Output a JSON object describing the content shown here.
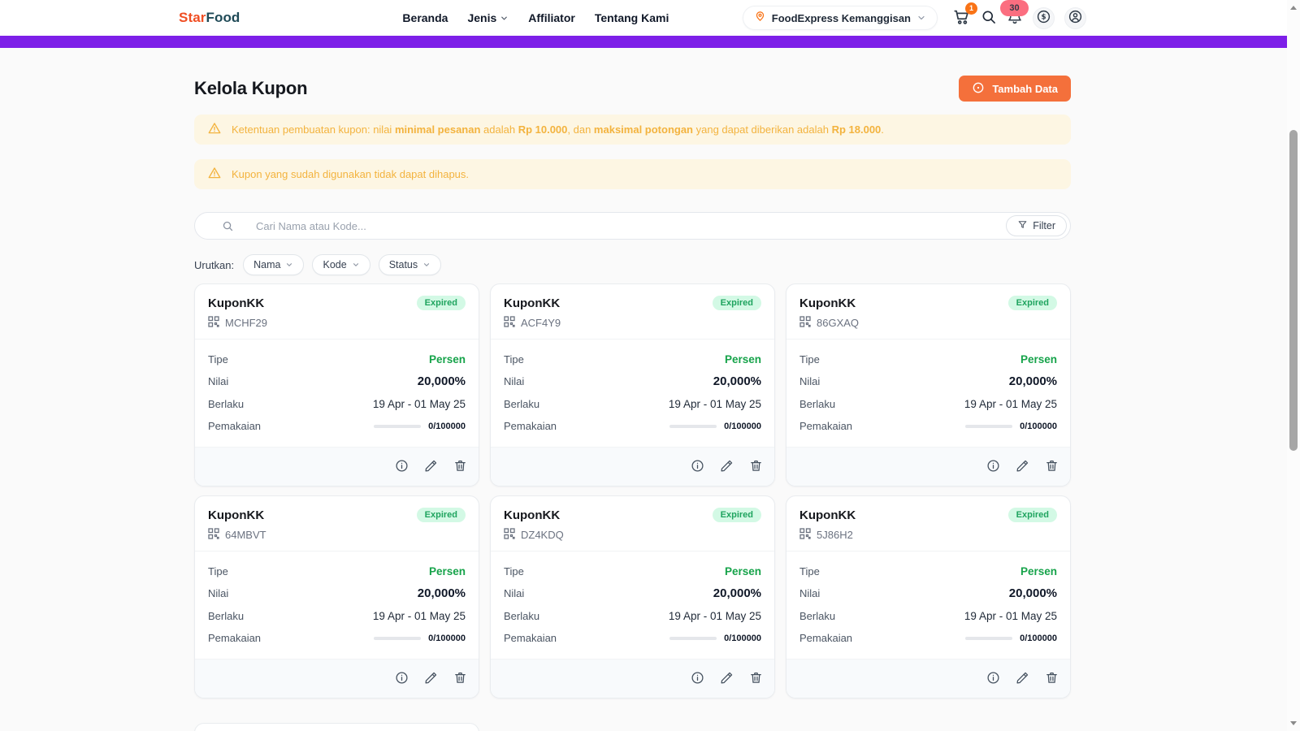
{
  "brand": {
    "name_part1": "Star",
    "name_part2": "Food"
  },
  "nav": {
    "items": [
      "Beranda",
      "Jenis",
      "Affiliator",
      "Tentang Kami"
    ],
    "location_label": "FoodExpress Kemanggisan",
    "cart_badge": "1",
    "notif_badge": "30"
  },
  "page": {
    "title": "Kelola Kupon",
    "add_button_label": "Tambah Data"
  },
  "notices": [
    {
      "segments": [
        {
          "text": "Ketentuan pembuatan kupon: nilai ",
          "bold": false
        },
        {
          "text": "minimal pesanan",
          "bold": true
        },
        {
          "text": " adalah ",
          "bold": false
        },
        {
          "text": "Rp 10.000",
          "bold": true
        },
        {
          "text": ", dan ",
          "bold": false
        },
        {
          "text": "maksimal potongan",
          "bold": true
        },
        {
          "text": " yang dapat diberikan adalah ",
          "bold": false
        },
        {
          "text": "Rp 18.000",
          "bold": true
        },
        {
          "text": ".",
          "bold": false
        }
      ]
    },
    {
      "segments": [
        {
          "text": "Kupon yang sudah digunakan tidak dapat dihapus.",
          "bold": false
        }
      ]
    }
  ],
  "search": {
    "placeholder": "Cari Nama atau Kode...",
    "filter_label": "Filter"
  },
  "sort": {
    "label": "Urutkan:",
    "options": [
      "Nama",
      "Kode",
      "Status"
    ]
  },
  "card_labels": {
    "type": "Tipe",
    "value": "Nilai",
    "valid": "Berlaku",
    "usage": "Pemakaian"
  },
  "coupons": [
    {
      "name": "KuponKK",
      "code": "MCHF29",
      "status": "Expired",
      "type": "Persen",
      "value": "20,000%",
      "valid": "19 Apr - 01 May 25",
      "usage": "0/100000"
    },
    {
      "name": "KuponKK",
      "code": "ACF4Y9",
      "status": "Expired",
      "type": "Persen",
      "value": "20,000%",
      "valid": "19 Apr - 01 May 25",
      "usage": "0/100000"
    },
    {
      "name": "KuponKK",
      "code": "86GXAQ",
      "status": "Expired",
      "type": "Persen",
      "value": "20,000%",
      "valid": "19 Apr - 01 May 25",
      "usage": "0/100000"
    },
    {
      "name": "KuponKK",
      "code": "64MBVT",
      "status": "Expired",
      "type": "Persen",
      "value": "20,000%",
      "valid": "19 Apr - 01 May 25",
      "usage": "0/100000"
    },
    {
      "name": "KuponKK",
      "code": "DZ4KDQ",
      "status": "Expired",
      "type": "Persen",
      "value": "20,000%",
      "valid": "19 Apr - 01 May 25",
      "usage": "0/100000"
    },
    {
      "name": "KuponKK",
      "code": "5J86H2",
      "status": "Expired",
      "type": "Persen",
      "value": "20,000%",
      "valid": "19 Apr - 01 May 25",
      "usage": "0/100000"
    }
  ],
  "colors": {
    "accent_orange": "#f4703b",
    "brand_orange": "#f04e23",
    "brand_teal": "#1f4a57",
    "announcement_purple": "#7d1fe8",
    "warning_amber": "#f3b33e",
    "status_expired_bg": "#d3f9e5",
    "status_expired_text": "#1fa45f",
    "type_green": "#16a34a",
    "cart_badge_bg": "#f97316",
    "notif_badge_bg": "#fb6e80"
  }
}
